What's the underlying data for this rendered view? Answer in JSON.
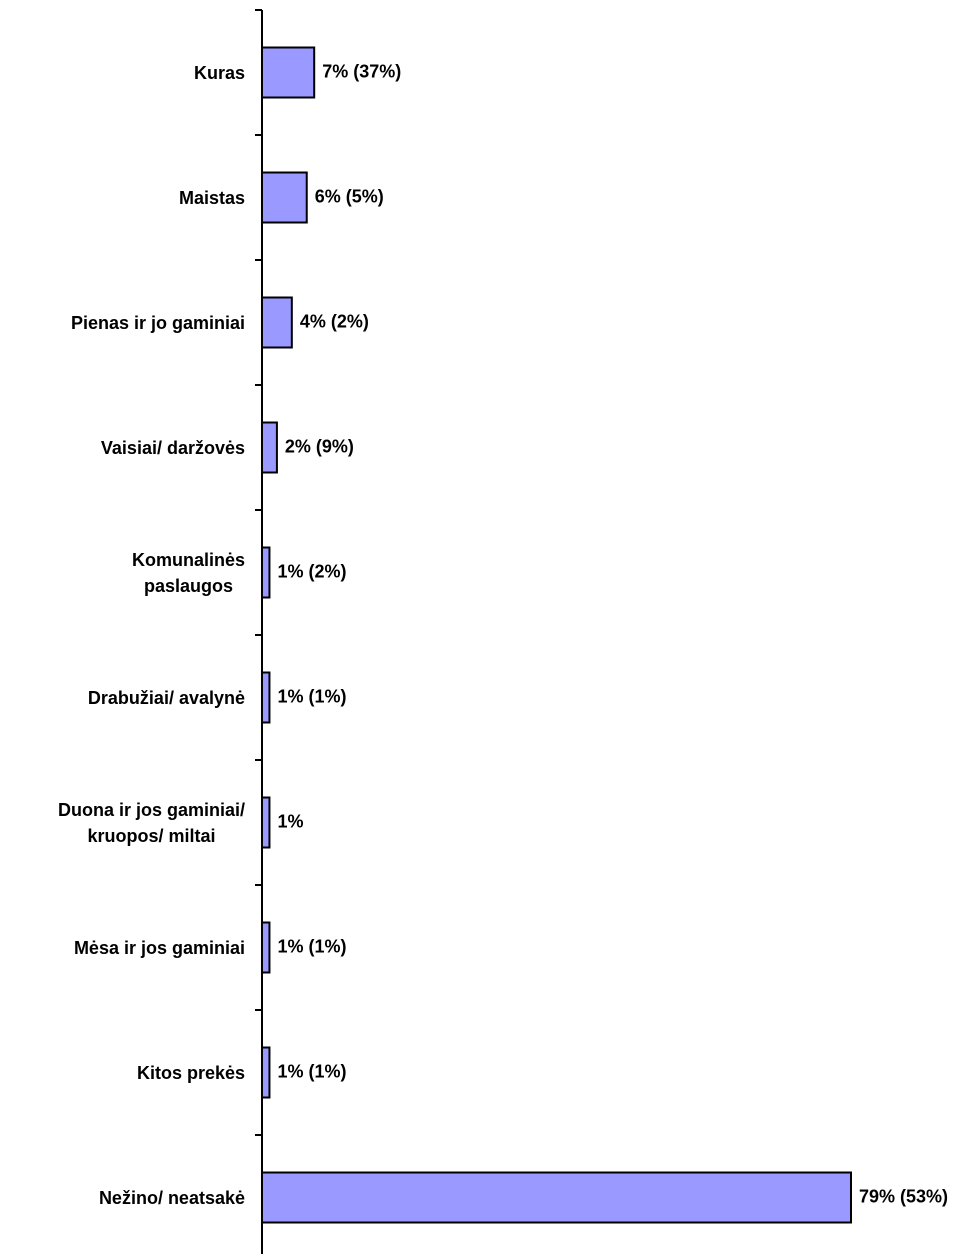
{
  "chart_data": {
    "type": "hbar",
    "categories": [
      "Kuras",
      "Maistas",
      "Pienas ir jo gaminiai",
      "Vaisiai/ daržovės",
      "Komunalinės\npaslaugos",
      "Drabužiai/ avalynė",
      "Duona ir jos gaminiai/\nkruopos/ miltai",
      "Mėsa ir jos gaminiai",
      "Kitos prekės",
      "Nežino/ neatsakė"
    ],
    "values": [
      7,
      6,
      4,
      2,
      1,
      1,
      1,
      1,
      1,
      79
    ],
    "value_labels": [
      "7% (37%)",
      "6% (5%)",
      "4% (2%)",
      "2% (9%)",
      "1% (2%)",
      "1% (1%)",
      "1%",
      "1% (1%)",
      "1% (1%)",
      "79% (53%)"
    ],
    "color": "#9999ff"
  }
}
